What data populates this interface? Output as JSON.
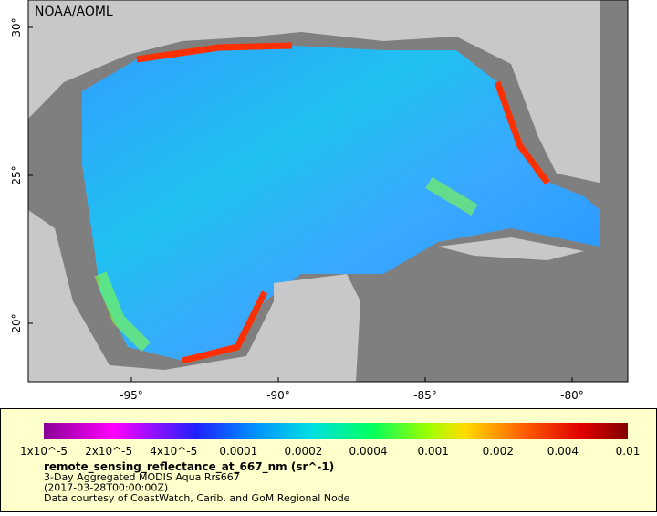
{
  "map": {
    "credit": "NOAA/AOML",
    "lat_labels": [
      "30°",
      "25°",
      "20°"
    ],
    "lon_labels": [
      "-95°",
      "-90°",
      "-85°",
      "-80°"
    ]
  },
  "legend": {
    "colorbar_labels": [
      "1x10^-5",
      "2x10^-5",
      "4x10^-5",
      "0.0001",
      "0.0002",
      "0.0004",
      "0.001",
      "0.002",
      "0.004",
      "0.01"
    ],
    "title": "remote_sensing_reflectance_at_667_nm (sr^-1)",
    "lines": [
      "3-Day Aggregated MODIS Aqua Rrs667",
      "(2017-03-28T00:00:00Z)",
      "Data courtesy of CoastWatch, Carib. and GoM Regional Node"
    ]
  }
}
